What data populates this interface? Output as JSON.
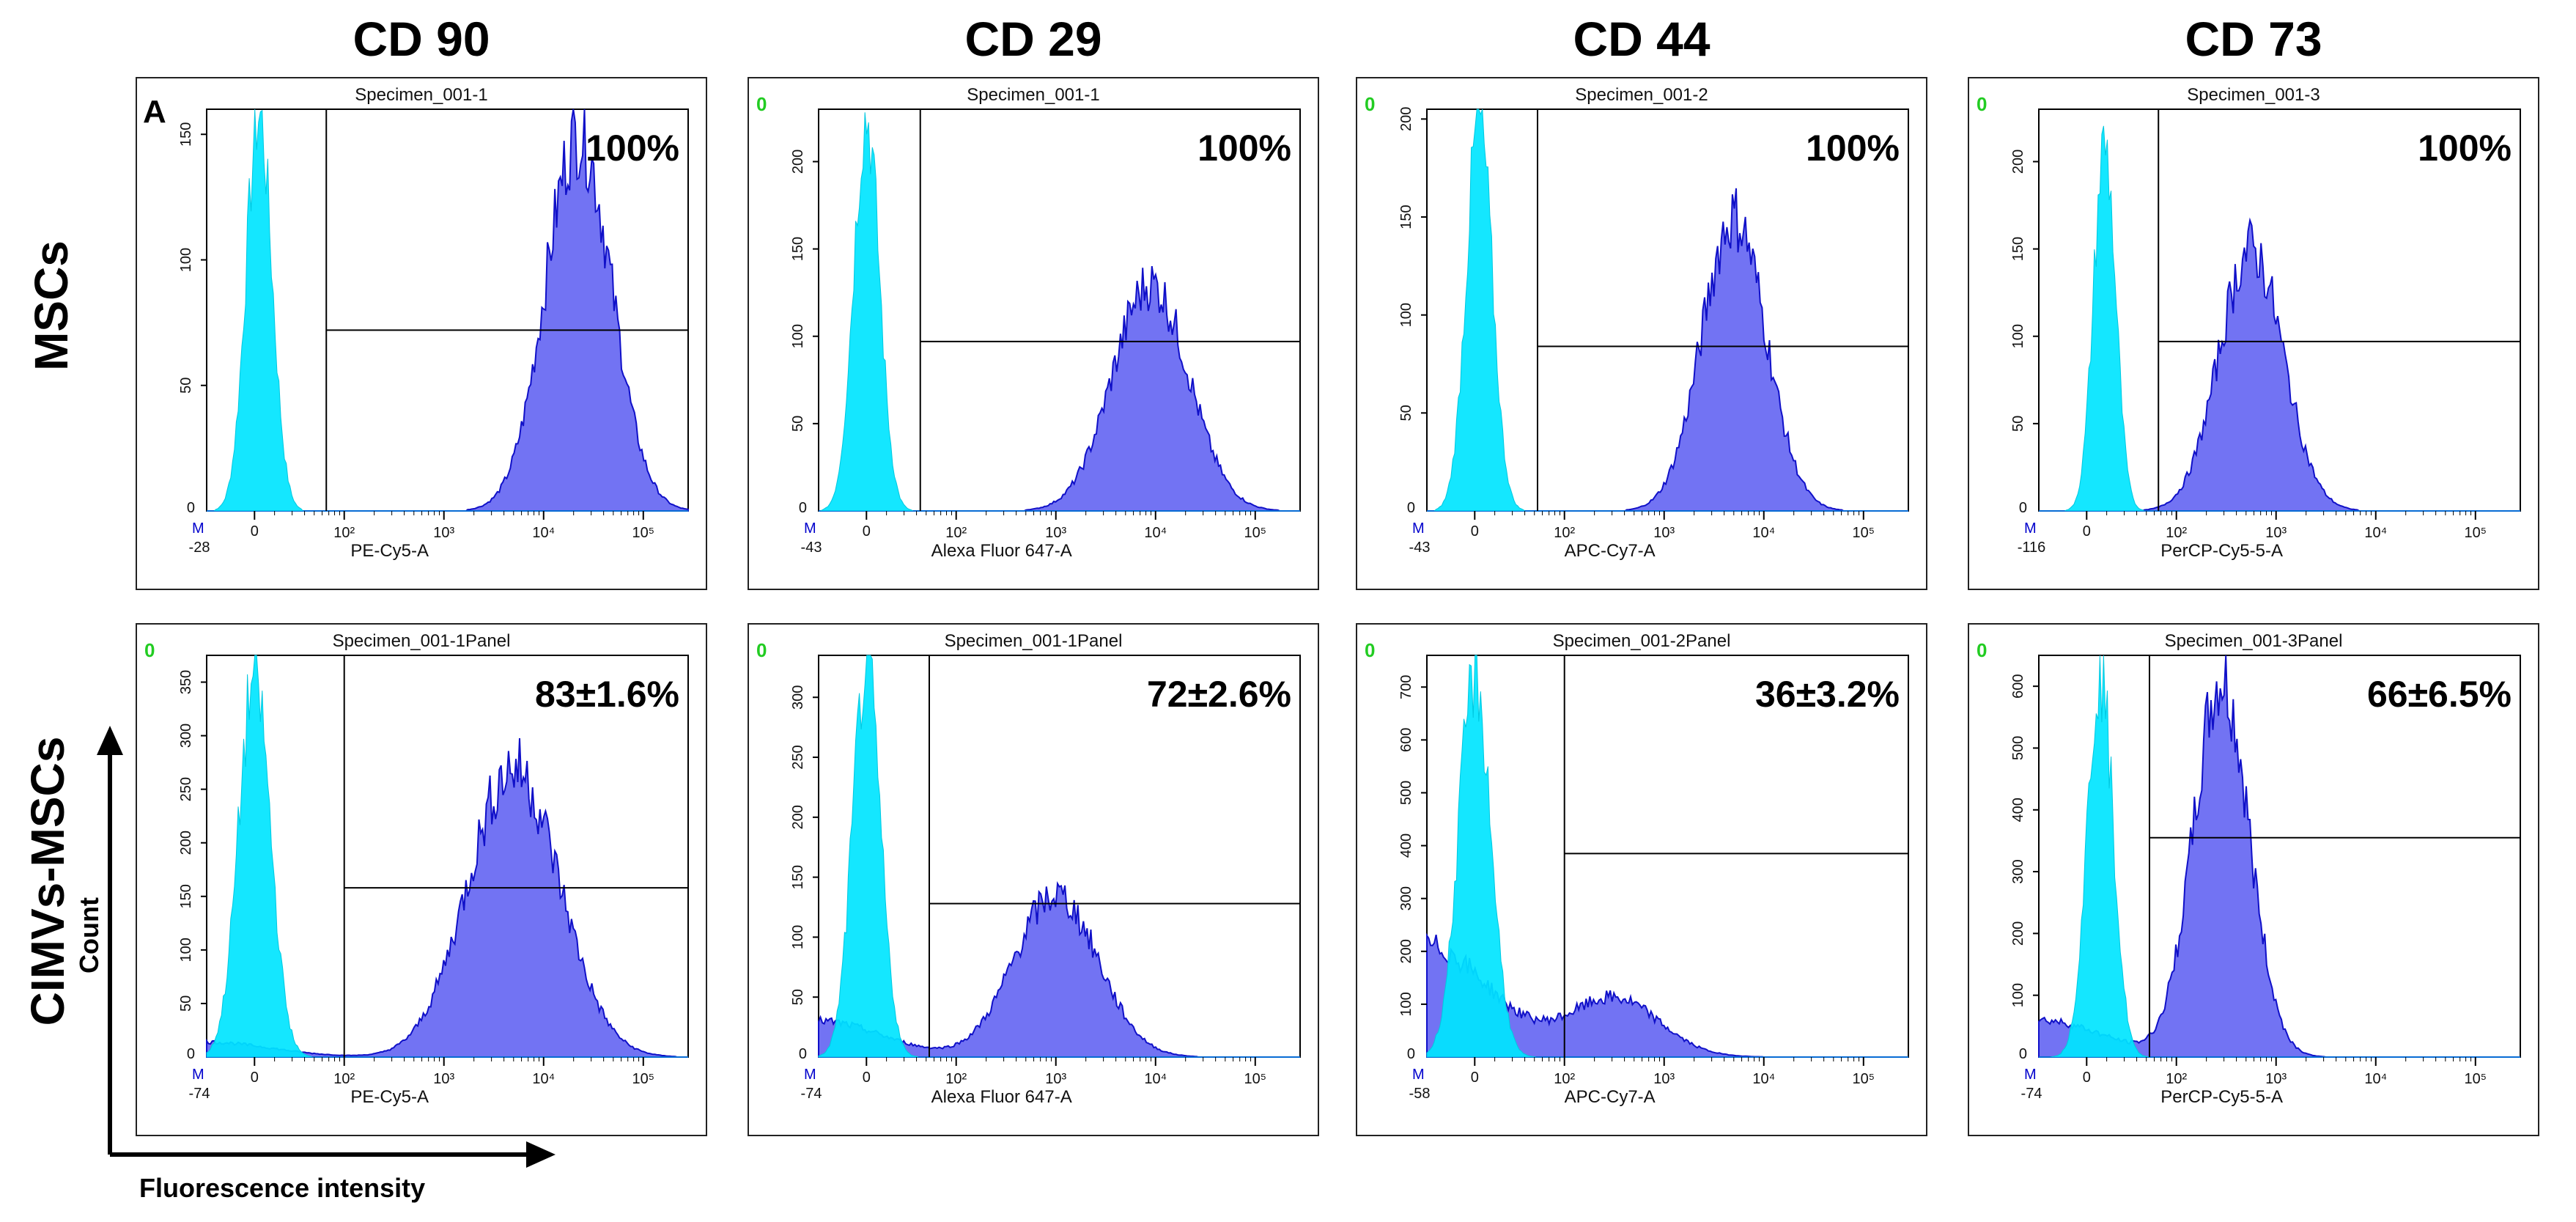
{
  "columns": [
    "CD 90",
    "CD 29",
    "CD 44",
    "CD 73"
  ],
  "rows": [
    "MSCs",
    "CIMVs-MSCs"
  ],
  "axis_labels": {
    "y": "Count",
    "x": "Fluorescence intensity"
  },
  "panel_letter": "A",
  "colors": {
    "control": "#00e5ff",
    "sample_fill": "#6a6cf2",
    "sample_edge": "#1010c8",
    "gate": "#000000",
    "corner_zero": "#22cc22",
    "corner_m": "#0000cc"
  },
  "chart_data": [
    {
      "type": "area",
      "title": "Specimen_001-1",
      "xlabel": "PE-Cy5-A",
      "ylabel": "Count",
      "percent": "100%",
      "min_label": "-28",
      "x_ticks": [
        "10²",
        "10³",
        "10⁴",
        "10⁵"
      ],
      "y_ticks": [
        "50",
        "100",
        "150"
      ],
      "ymax": 160,
      "xmin": -40,
      "gate_x": 80,
      "gate_y": 72,
      "control": {
        "center": 5,
        "width": 0.13,
        "peak": 158
      },
      "sample": {
        "center": 4.35,
        "width": 0.33,
        "peak": 150
      }
    },
    {
      "type": "area",
      "title": "Specimen_001-1",
      "xlabel": "Alexa Fluor 647-A",
      "ylabel": "Count",
      "percent": "100%",
      "min_label": "-43",
      "x_ticks": [
        "10²",
        "10³",
        "10⁴",
        "10⁵"
      ],
      "y_ticks": [
        "50",
        "100",
        "150",
        "200"
      ],
      "ymax": 230,
      "xmin": -43,
      "gate_x": 60,
      "gate_y": 97,
      "control": {
        "center": 0,
        "width": 0.13,
        "peak": 225
      },
      "sample": {
        "center": 3.95,
        "width": 0.38,
        "peak": 130
      }
    },
    {
      "type": "area",
      "title": "Specimen_001-2",
      "xlabel": "APC-Cy7-A",
      "ylabel": "Count",
      "percent": "100%",
      "min_label": "-43",
      "x_ticks": [
        "10²",
        "10³",
        "10⁴",
        "10⁵"
      ],
      "y_ticks": [
        "50",
        "100",
        "150",
        "200"
      ],
      "ymax": 205,
      "xmin": -43,
      "gate_x": 70,
      "gate_y": 84,
      "control": {
        "center": 5,
        "width": 0.13,
        "peak": 200
      },
      "sample": {
        "center": 3.7,
        "width": 0.32,
        "peak": 150
      }
    },
    {
      "type": "area",
      "title": "Specimen_001-3",
      "xlabel": "PerCP-Cy5-5-A",
      "ylabel": "Count",
      "percent": "100%",
      "min_label": "-116",
      "x_ticks": [
        "10²",
        "10³",
        "10⁴",
        "10⁵"
      ],
      "y_ticks": [
        "50",
        "100",
        "150",
        "200"
      ],
      "ymax": 230,
      "xmin": -116,
      "gate_x": 80,
      "gate_y": 97,
      "control": {
        "center": 20,
        "width": 0.11,
        "peak": 210
      },
      "sample": {
        "center": 2.75,
        "width": 0.32,
        "peak": 150
      }
    },
    {
      "type": "area",
      "title": "Specimen_001-1Panel",
      "xlabel": "PE-Cy5-A",
      "ylabel": "Count",
      "percent": "83±1.6%",
      "min_label": "-74",
      "x_ticks": [
        "10²",
        "10³",
        "10⁴",
        "10⁵"
      ],
      "y_ticks": [
        "50",
        "100",
        "150",
        "200",
        "250",
        "300",
        "350"
      ],
      "ymax": 375,
      "xmin": -74,
      "gate_x": 100,
      "gate_y": 158,
      "control": {
        "center": 0,
        "width": 0.16,
        "peak": 355
      },
      "sample": {
        "center": 3.7,
        "width": 0.46,
        "peak": 270,
        "tail": 14
      }
    },
    {
      "type": "area",
      "title": "Specimen_001-1Panel",
      "xlabel": "Alexa Fluor 647-A",
      "ylabel": "Count",
      "percent": "72±2.6%",
      "min_label": "-74",
      "x_ticks": [
        "10²",
        "10³",
        "10⁴",
        "10⁵"
      ],
      "y_ticks": [
        "50",
        "100",
        "150",
        "200",
        "250",
        "300"
      ],
      "ymax": 335,
      "xmin": -74,
      "gate_x": 70,
      "gate_y": 128,
      "control": {
        "center": 0,
        "width": 0.14,
        "peak": 325
      },
      "sample": {
        "center": 3.0,
        "width": 0.42,
        "peak": 135,
        "tail": 30
      }
    },
    {
      "type": "area",
      "title": "Specimen_001-2Panel",
      "xlabel": "APC-Cy7-A",
      "ylabel": "Count",
      "percent": "36±3.2%",
      "min_label": "-58",
      "x_ticks": [
        "10²",
        "10³",
        "10⁴",
        "10⁵"
      ],
      "y_ticks": [
        "100",
        "200",
        "300",
        "400",
        "500",
        "600",
        "700"
      ],
      "ymax": 760,
      "xmin": -58,
      "gate_x": 100,
      "gate_y": 385,
      "control": {
        "center": 0,
        "width": 0.16,
        "peak": 720
      },
      "sample": {
        "center": 2.5,
        "width": 0.45,
        "peak": 110,
        "tail": 210
      }
    },
    {
      "type": "area",
      "title": "Specimen_001-3Panel",
      "xlabel": "PerCP-Cy5-5-A",
      "ylabel": "Count",
      "percent": "66±6.5%",
      "min_label": "-74",
      "x_ticks": [
        "10²",
        "10³",
        "10⁴",
        "10⁵"
      ],
      "y_ticks": [
        "100",
        "200",
        "300",
        "400",
        "500",
        "600"
      ],
      "ymax": 650,
      "xmin": -74,
      "gate_x": 70,
      "gate_y": 355,
      "control": {
        "center": 15,
        "width": 0.13,
        "peak": 620
      },
      "sample": {
        "center": 2.45,
        "width": 0.28,
        "peak": 600,
        "tail": 60
      }
    }
  ]
}
